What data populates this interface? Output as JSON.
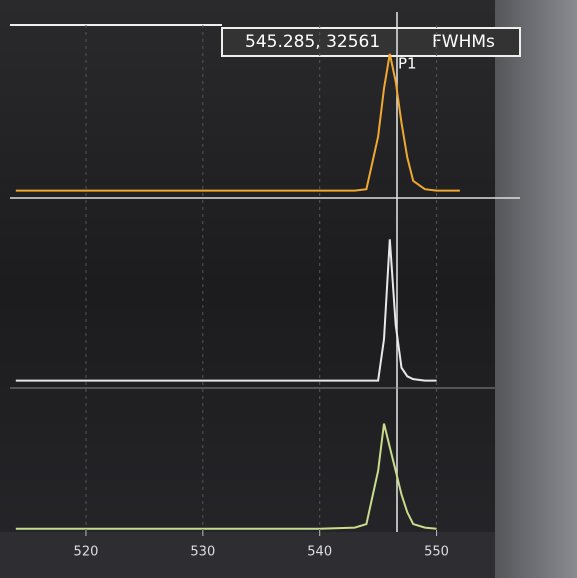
{
  "chart_data": [
    {
      "type": "line",
      "color": "#f0a830",
      "readout": "545.285, 32561",
      "label": "FWHMs",
      "peak_label": "P1",
      "x": [
        514,
        520,
        530,
        540,
        543,
        544,
        545,
        545.5,
        546,
        546.5,
        547,
        547.5,
        548,
        549,
        550,
        552
      ],
      "values": [
        1,
        1,
        1,
        1,
        1,
        2,
        40,
        75,
        100,
        80,
        50,
        25,
        8,
        2,
        1,
        1
      ],
      "xlim": [
        513.5,
        555
      ],
      "ylim": [
        0,
        110
      ]
    },
    {
      "type": "line",
      "color": "#e8e8e8",
      "x": [
        514,
        520,
        530,
        540,
        543,
        544,
        545,
        545.5,
        546,
        546.5,
        547,
        547.5,
        548,
        549,
        550,
        552
      ],
      "values": [
        1,
        1,
        1,
        1,
        1,
        1,
        1,
        30,
        100,
        40,
        10,
        4,
        2,
        1,
        1,
        null
      ],
      "xlim": [
        513.5,
        555
      ],
      "ylim": [
        0,
        110
      ]
    },
    {
      "type": "line",
      "color": "#c8dc8c",
      "x": [
        514,
        520,
        530,
        540,
        543,
        544,
        545,
        545.5,
        546,
        546.5,
        547,
        547.5,
        548,
        549,
        550,
        552
      ],
      "values": [
        1,
        1,
        1,
        1,
        2,
        5,
        50,
        90,
        70,
        50,
        30,
        15,
        5,
        2,
        1,
        null
      ],
      "xlim": [
        513.5,
        555
      ],
      "ylim": [
        0,
        110
      ],
      "xticks": [
        520,
        530,
        540,
        550
      ],
      "grid": true
    }
  ]
}
